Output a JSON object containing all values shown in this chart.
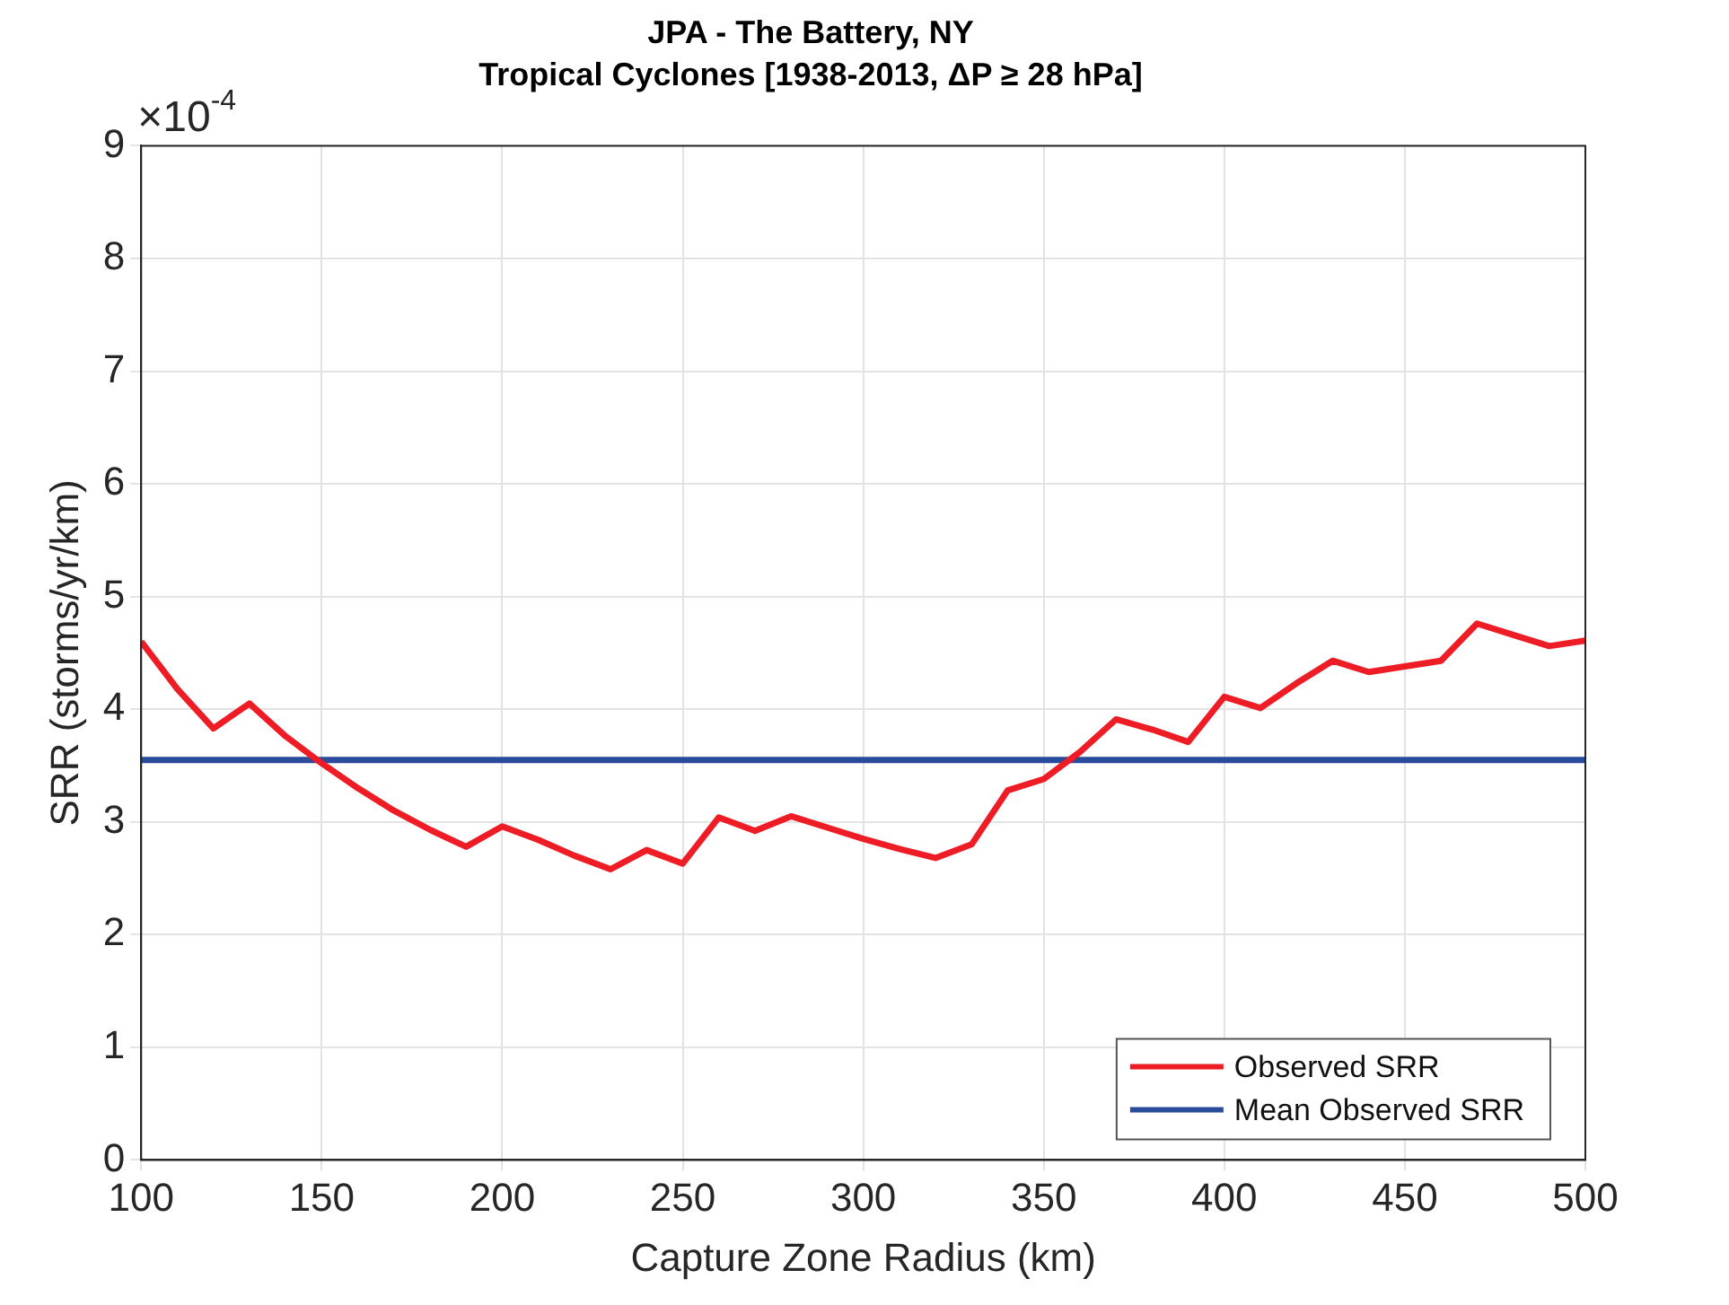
{
  "chart_data": {
    "type": "line",
    "title": "JPA - The Battery, NY",
    "subtitle": "Tropical Cyclones [1938-2013, ΔP ≥ 28 hPa]",
    "xlabel": "Capture Zone Radius (km)",
    "ylabel": "SRR (storms/yr/km)",
    "annotations": [
      "×10$^{-4}$"
    ],
    "x": [
      100,
      110,
      120,
      130,
      140,
      150,
      160,
      170,
      180,
      190,
      200,
      210,
      220,
      230,
      240,
      250,
      260,
      270,
      280,
      290,
      300,
      310,
      320,
      330,
      340,
      350,
      360,
      370,
      380,
      390,
      400,
      410,
      420,
      430,
      440,
      450,
      460,
      470,
      480,
      490,
      500
    ],
    "series": [
      {
        "name": "Observed SRR",
        "color": "#ee1c25",
        "values": [
          4.6,
          4.18,
          3.83,
          4.05,
          3.76,
          3.52,
          3.3,
          3.1,
          2.93,
          2.78,
          2.96,
          2.84,
          2.7,
          2.58,
          2.75,
          2.63,
          3.04,
          2.92,
          3.05,
          2.95,
          2.85,
          2.76,
          2.68,
          2.8,
          3.28,
          3.38,
          3.62,
          3.91,
          3.82,
          3.71,
          4.11,
          4.01,
          4.23,
          4.43,
          4.33,
          4.38,
          4.43,
          4.76,
          4.66,
          4.56,
          4.61
        ]
      },
      {
        "name": "Mean Observed SRR",
        "color": "#2a4b9b",
        "x": [
          100,
          500
        ],
        "values": [
          3.55,
          3.55
        ]
      }
    ],
    "xlim": [
      100,
      500
    ],
    "xticks": [
      100,
      150,
      200,
      250,
      300,
      350,
      400,
      450,
      500
    ],
    "ylim": [
      0,
      9
    ],
    "yticks": [
      0,
      1,
      2,
      3,
      4,
      5,
      6,
      7,
      8,
      9
    ],
    "grid": true,
    "legend": "bottom right",
    "marker": "none",
    "line_style": "solid"
  }
}
